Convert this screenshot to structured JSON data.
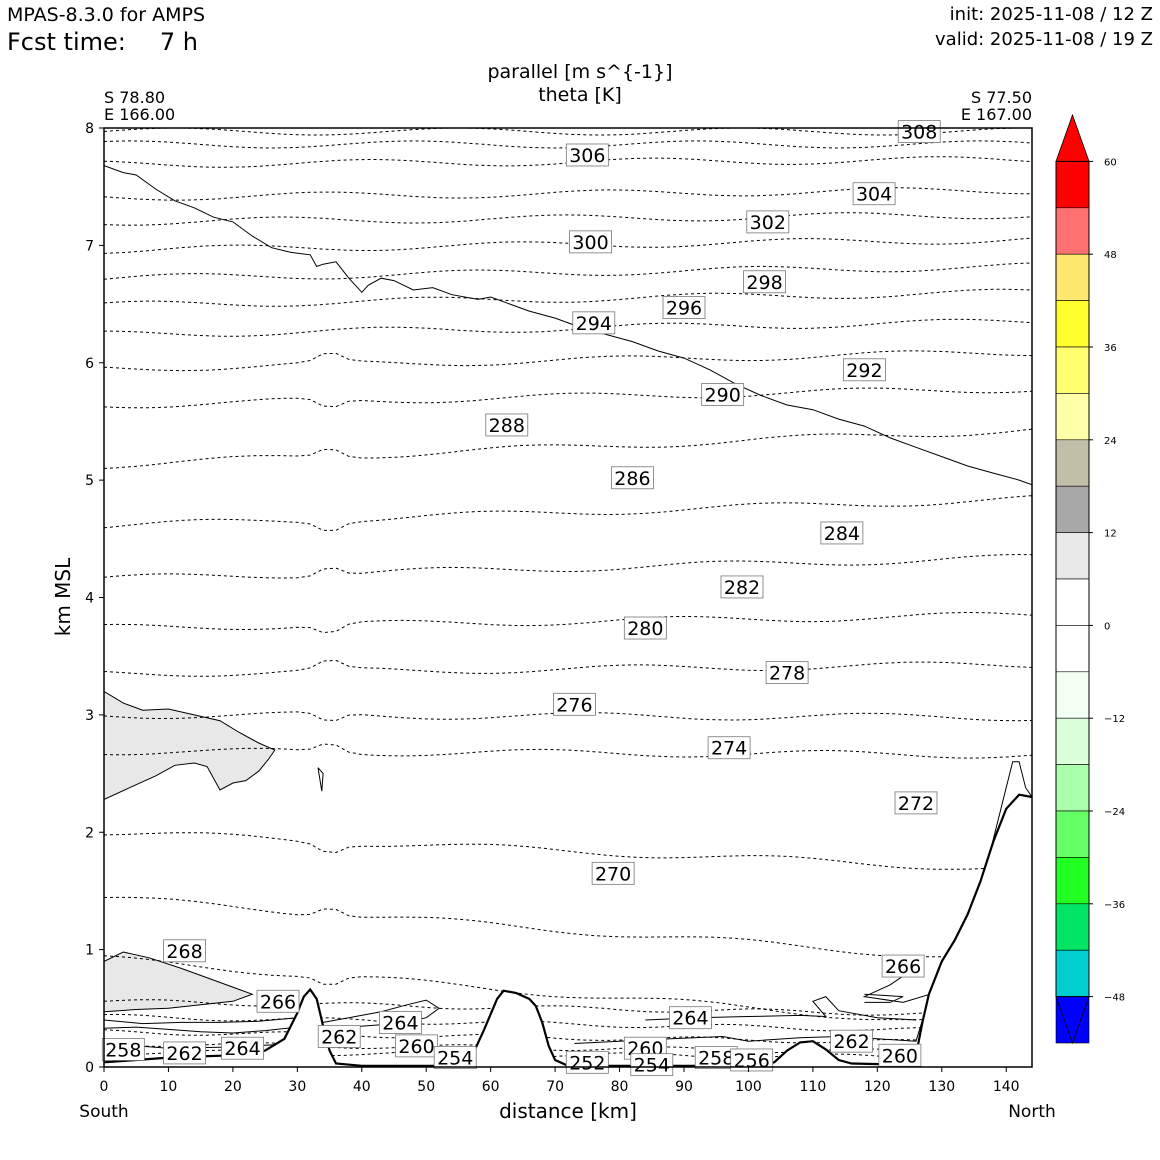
{
  "header": {
    "model": "MPAS-8.3.0 for AMPS",
    "fcst_label": "Fcst time:",
    "fcst_value": "7 h",
    "init": "init: 2025-11-08 / 12 Z",
    "valid": "valid: 2025-11-08 / 19 Z"
  },
  "chart_data": {
    "type": "contour",
    "title": "parallel [m s^{-1}]",
    "subtitle": "theta [K]",
    "start_point": {
      "lat": "S 78.80",
      "lon": "E 166.00"
    },
    "end_point": {
      "lat": "S 77.50",
      "lon": "E 167.00"
    },
    "xlabel": "distance [km]",
    "ylabel": "km MSL",
    "xlim": [
      0,
      144
    ],
    "ylim": [
      0,
      8
    ],
    "x_ticks": [
      0,
      10,
      20,
      30,
      40,
      50,
      60,
      70,
      80,
      90,
      100,
      110,
      120,
      130,
      140
    ],
    "y_ticks": [
      0,
      1,
      2,
      3,
      4,
      5,
      6,
      7,
      8
    ],
    "x_end_labels": {
      "left": "South",
      "right": "North"
    },
    "colorbar": {
      "ticks": [
        "60",
        "48",
        "36",
        "24",
        "12",
        "0",
        "−12",
        "−24",
        "−36",
        "−48"
      ],
      "tick_values": [
        60,
        48,
        36,
        24,
        12,
        0,
        -12,
        -24,
        -36,
        -48
      ],
      "min": -54,
      "max": 66,
      "over_color": "#ff0000",
      "under_color": "#0000ff",
      "levels": [
        {
          "from": 54,
          "to": 60,
          "color": "#ff0000"
        },
        {
          "from": 48,
          "to": 54,
          "color": "#ff7070"
        },
        {
          "from": 42,
          "to": 48,
          "color": "#ffe870"
        },
        {
          "from": 36,
          "to": 42,
          "color": "#ffff2e"
        },
        {
          "from": 30,
          "to": 36,
          "color": "#ffff70"
        },
        {
          "from": 24,
          "to": 30,
          "color": "#ffffa8"
        },
        {
          "from": 18,
          "to": 24,
          "color": "#c0c0a8"
        },
        {
          "from": 12,
          "to": 18,
          "color": "#a8a8a8"
        },
        {
          "from": 6,
          "to": 12,
          "color": "#e8e8e8"
        },
        {
          "from": 0,
          "to": 6,
          "color": "#ffffff"
        },
        {
          "from": -6,
          "to": 0,
          "color": "#ffffff"
        },
        {
          "from": -12,
          "to": -6,
          "color": "#f2fff2"
        },
        {
          "from": -18,
          "to": -12,
          "color": "#daffda"
        },
        {
          "from": -24,
          "to": -18,
          "color": "#aaffaa"
        },
        {
          "from": -30,
          "to": -24,
          "color": "#66ff66"
        },
        {
          "from": -36,
          "to": -30,
          "color": "#22ff22"
        },
        {
          "from": -42,
          "to": -36,
          "color": "#00e564"
        },
        {
          "from": -48,
          "to": -42,
          "color": "#00cdcd"
        },
        {
          "from": -54,
          "to": -48,
          "color": "#0000ff"
        }
      ]
    },
    "theta_labels": [
      {
        "value": "308",
        "x": 126.5,
        "y": 7.97
      },
      {
        "value": "306",
        "x": 75.0,
        "y": 7.77
      },
      {
        "value": "304",
        "x": 119.5,
        "y": 7.44
      },
      {
        "value": "302",
        "x": 103.0,
        "y": 7.2
      },
      {
        "value": "300",
        "x": 75.5,
        "y": 7.03
      },
      {
        "value": "298",
        "x": 102.5,
        "y": 6.69
      },
      {
        "value": "296",
        "x": 90.0,
        "y": 6.47
      },
      {
        "value": "294",
        "x": 76.0,
        "y": 6.34
      },
      {
        "value": "292",
        "x": 118.0,
        "y": 5.94
      },
      {
        "value": "290",
        "x": 96.0,
        "y": 5.73
      },
      {
        "value": "288",
        "x": 62.5,
        "y": 5.47
      },
      {
        "value": "286",
        "x": 82.0,
        "y": 5.02
      },
      {
        "value": "284",
        "x": 114.5,
        "y": 4.55
      },
      {
        "value": "282",
        "x": 99.0,
        "y": 4.09
      },
      {
        "value": "280",
        "x": 84.0,
        "y": 3.74
      },
      {
        "value": "278",
        "x": 106.0,
        "y": 3.36
      },
      {
        "value": "276",
        "x": 73.0,
        "y": 3.09
      },
      {
        "value": "274",
        "x": 97.0,
        "y": 2.72
      },
      {
        "value": "272",
        "x": 126.0,
        "y": 2.25
      },
      {
        "value": "270",
        "x": 79.0,
        "y": 1.65
      },
      {
        "value": "268",
        "x": 12.5,
        "y": 0.99
      },
      {
        "value": "266",
        "x": 124.0,
        "y": 0.86
      },
      {
        "value": "266",
        "x": 27.0,
        "y": 0.56
      },
      {
        "value": "264",
        "x": 91.0,
        "y": 0.42
      },
      {
        "value": "264",
        "x": 46.0,
        "y": 0.38
      },
      {
        "value": "262",
        "x": 36.5,
        "y": 0.26
      },
      {
        "value": "262",
        "x": 116.0,
        "y": 0.22
      },
      {
        "value": "262",
        "x": 12.5,
        "y": 0.12
      },
      {
        "value": "264",
        "x": 21.5,
        "y": 0.16
      },
      {
        "value": "258",
        "x": 3.0,
        "y": 0.15
      },
      {
        "value": "260",
        "x": 48.5,
        "y": 0.18
      },
      {
        "value": "260",
        "x": 84.0,
        "y": 0.16
      },
      {
        "value": "260",
        "x": 123.5,
        "y": 0.1
      },
      {
        "value": "258",
        "x": 95.0,
        "y": 0.08
      },
      {
        "value": "256",
        "x": 100.5,
        "y": 0.06
      },
      {
        "value": "254",
        "x": 54.5,
        "y": 0.08
      },
      {
        "value": "252",
        "x": 75.0,
        "y": 0.04
      },
      {
        "value": "254",
        "x": 85.0,
        "y": 0.02
      }
    ]
  }
}
